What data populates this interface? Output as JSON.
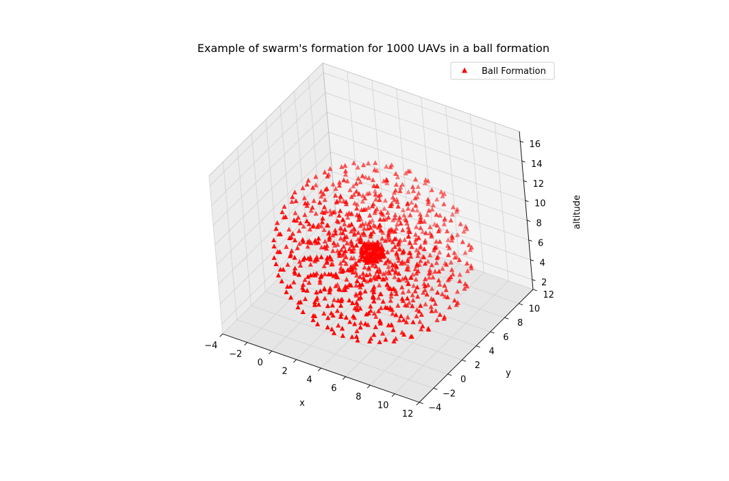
{
  "chart_data": {
    "type": "scatter3d",
    "title": "Example of swarm's formation for 1000 UAVs in a ball formation",
    "xlabel": "x",
    "ylabel": "y",
    "zlabel": "altitude",
    "xlim": [
      -4,
      12
    ],
    "ylim": [
      -4,
      12
    ],
    "zlim": [
      1,
      17
    ],
    "x_ticks": [
      "−4",
      "−2",
      "0",
      "2",
      "4",
      "6",
      "8",
      "10",
      "12"
    ],
    "y_ticks": [
      "−4",
      "−2",
      "0",
      "2",
      "4",
      "6",
      "8",
      "10",
      "12"
    ],
    "z_ticks": [
      "2",
      "4",
      "6",
      "8",
      "10",
      "12",
      "14",
      "16"
    ],
    "series": [
      {
        "name": "Ball Formation",
        "marker": "triangle",
        "color": "#ff0000",
        "count": 1000,
        "center": [
          4,
          4,
          7
        ],
        "shell_radii": [
          7,
          5.8,
          4.6,
          3.4,
          2.2
        ],
        "core_radius": 0.9
      }
    ],
    "legend": {
      "position": "top-right",
      "entries": [
        "Ball Formation"
      ]
    },
    "grid": true
  }
}
